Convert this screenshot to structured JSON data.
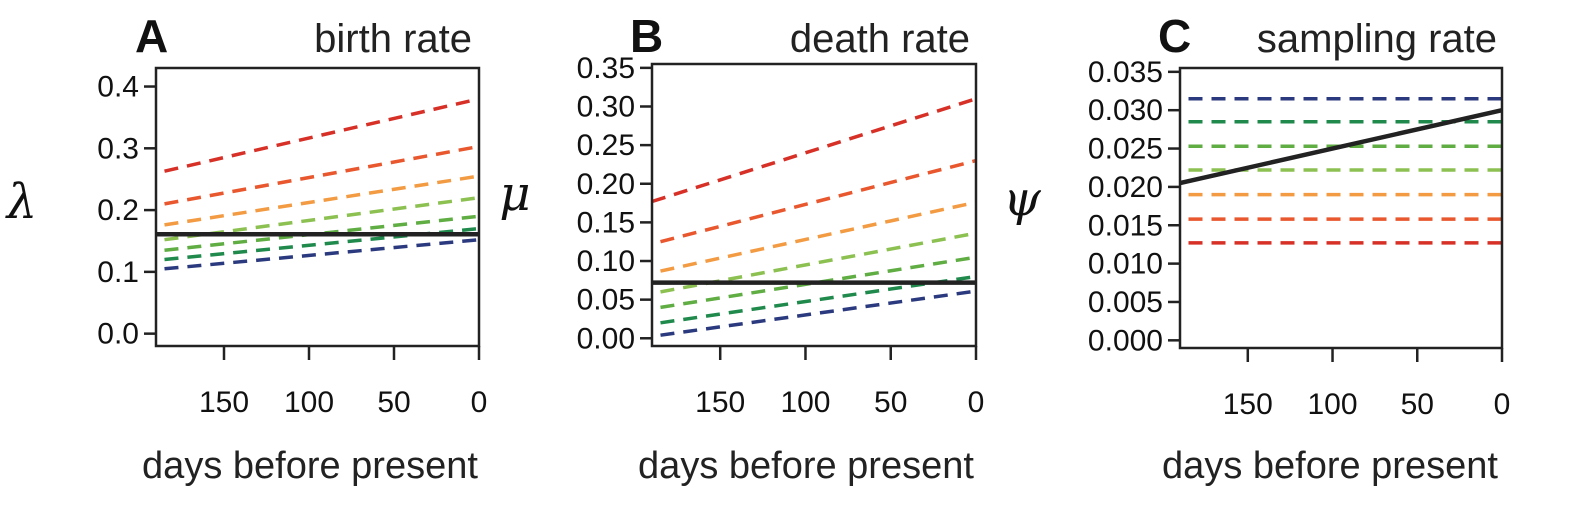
{
  "chart_data": [
    {
      "panel": "A",
      "type": "line",
      "title": "birth rate",
      "ylabel": "λ",
      "xlabel": "days before present",
      "xlim": [
        190,
        0
      ],
      "ylim": [
        -0.02,
        0.43
      ],
      "xticks": [
        150,
        100,
        50,
        0
      ],
      "yticks": [
        0.0,
        0.1,
        0.2,
        0.3,
        0.4
      ],
      "ytick_labels": [
        "0.0",
        "0.1",
        "0.2",
        "0.3",
        "0.4"
      ],
      "series": [
        {
          "style": "dashed",
          "color": "#d73027",
          "x": [
            185,
            0
          ],
          "y": [
            0.263,
            0.38
          ]
        },
        {
          "style": "dashed",
          "color": "#e8572e",
          "x": [
            185,
            0
          ],
          "y": [
            0.21,
            0.303
          ]
        },
        {
          "style": "dashed",
          "color": "#f29b43",
          "x": [
            185,
            0
          ],
          "y": [
            0.176,
            0.255
          ]
        },
        {
          "style": "dashed",
          "color": "#8cc152",
          "x": [
            185,
            0
          ],
          "y": [
            0.152,
            0.22
          ]
        },
        {
          "style": "dashed",
          "color": "#5fad43",
          "x": [
            185,
            0
          ],
          "y": [
            0.135,
            0.19
          ]
        },
        {
          "style": "dashed",
          "color": "#1f8a4c",
          "x": [
            185,
            0
          ],
          "y": [
            0.12,
            0.17
          ]
        },
        {
          "style": "dashed",
          "color": "#2b3a7e",
          "x": [
            185,
            0
          ],
          "y": [
            0.105,
            0.152
          ]
        },
        {
          "style": "solid",
          "color": "#222222",
          "x": [
            190,
            0
          ],
          "y": [
            0.161,
            0.161
          ]
        }
      ]
    },
    {
      "panel": "B",
      "type": "line",
      "title": "death rate",
      "ylabel": "μ",
      "xlabel": "days before present",
      "xlim": [
        190,
        0
      ],
      "ylim": [
        -0.01,
        0.355
      ],
      "xticks": [
        150,
        100,
        50,
        0
      ],
      "yticks": [
        0.0,
        0.05,
        0.1,
        0.15,
        0.2,
        0.25,
        0.3,
        0.35
      ],
      "ytick_labels": [
        "0.00",
        "0.05",
        "0.10",
        "0.15",
        "0.20",
        "0.25",
        "0.30",
        "0.35"
      ],
      "series": [
        {
          "style": "dashed",
          "color": "#d73027",
          "x": [
            190,
            0
          ],
          "y": [
            0.177,
            0.31
          ]
        },
        {
          "style": "dashed",
          "color": "#e8572e",
          "x": [
            185,
            0
          ],
          "y": [
            0.125,
            0.23
          ]
        },
        {
          "style": "dashed",
          "color": "#f29b43",
          "x": [
            185,
            0
          ],
          "y": [
            0.087,
            0.176
          ]
        },
        {
          "style": "dashed",
          "color": "#8cc152",
          "x": [
            185,
            0
          ],
          "y": [
            0.06,
            0.136
          ]
        },
        {
          "style": "dashed",
          "color": "#5fad43",
          "x": [
            185,
            0
          ],
          "y": [
            0.04,
            0.105
          ]
        },
        {
          "style": "dashed",
          "color": "#1f8a4c",
          "x": [
            185,
            0
          ],
          "y": [
            0.02,
            0.08
          ]
        },
        {
          "style": "dashed",
          "color": "#2b3a7e",
          "x": [
            185,
            0
          ],
          "y": [
            0.004,
            0.061
          ]
        },
        {
          "style": "solid",
          "color": "#222222",
          "x": [
            190,
            0
          ],
          "y": [
            0.072,
            0.072
          ]
        }
      ]
    },
    {
      "panel": "C",
      "type": "line",
      "title": "sampling rate",
      "ylabel": "ψ",
      "xlabel": "days before present",
      "xlim": [
        190,
        0
      ],
      "ylim": [
        -0.001,
        0.0355
      ],
      "xticks": [
        150,
        100,
        50,
        0
      ],
      "yticks": [
        0.0,
        0.005,
        0.01,
        0.015,
        0.02,
        0.025,
        0.03,
        0.035
      ],
      "ytick_labels": [
        "0.000",
        "0.005",
        "0.010",
        "0.015",
        "0.020",
        "0.025",
        "0.030",
        "0.035"
      ],
      "series": [
        {
          "style": "dashed",
          "color": "#2b3a7e",
          "x": [
            185,
            0
          ],
          "y": [
            0.0315,
            0.0315
          ]
        },
        {
          "style": "dashed",
          "color": "#1f8a4c",
          "x": [
            185,
            0
          ],
          "y": [
            0.0285,
            0.0285
          ]
        },
        {
          "style": "dashed",
          "color": "#5fad43",
          "x": [
            185,
            0
          ],
          "y": [
            0.0253,
            0.0253
          ]
        },
        {
          "style": "dashed",
          "color": "#8cc152",
          "x": [
            185,
            0
          ],
          "y": [
            0.0222,
            0.0222
          ]
        },
        {
          "style": "dashed",
          "color": "#f29b43",
          "x": [
            185,
            0
          ],
          "y": [
            0.019,
            0.019
          ]
        },
        {
          "style": "dashed",
          "color": "#e8572e",
          "x": [
            185,
            0
          ],
          "y": [
            0.0158,
            0.0158
          ]
        },
        {
          "style": "dashed",
          "color": "#d73027",
          "x": [
            185,
            0
          ],
          "y": [
            0.0127,
            0.0127
          ]
        },
        {
          "style": "solid",
          "color": "#222222",
          "x": [
            190,
            0
          ],
          "y": [
            0.0205,
            0.03
          ]
        }
      ]
    }
  ]
}
